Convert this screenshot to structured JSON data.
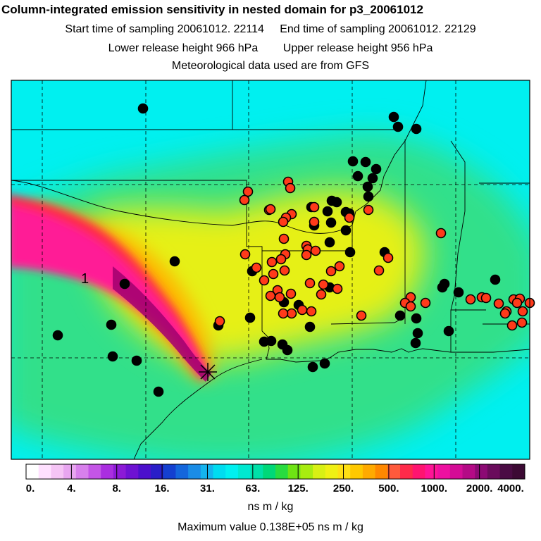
{
  "header": {
    "title": "Column-integrated emission sensitivity in nested domain for p3_20061012",
    "start_label": "Start time of sampling 20061012. 22114",
    "end_label": "End time of sampling 20061012. 22129",
    "lower_label": "Lower release height  966 hPa",
    "upper_label": "Upper release height  956 hPa",
    "met_label": "Meteorological data used are from GFS"
  },
  "map": {
    "plume_label": "1",
    "colors": {
      "background_cyan": "#00f0f0",
      "green": "#33e08a",
      "yellow": "#e6f014",
      "orange": "#ffb400",
      "red": "#ff2a4a",
      "magenta": "#ff1e96",
      "purple": "#a0006e",
      "black_marker": "#000000",
      "red_marker": "#ff3a1a"
    }
  },
  "colorbar": {
    "colors": [
      "#ffffff",
      "#ffe0ff",
      "#f5c4f5",
      "#e8a6f0",
      "#d880ec",
      "#c455e6",
      "#aa2ee0",
      "#8c1ad6",
      "#6e12d2",
      "#4c10cc",
      "#2a1ec8",
      "#1440d0",
      "#1466dc",
      "#1a8ce6",
      "#14b4ee",
      "#00dcf0",
      "#00f0f0",
      "#00e8d0",
      "#00e0a8",
      "#00d878",
      "#28dc40",
      "#6ee414",
      "#a8ec10",
      "#d8f014",
      "#f0f014",
      "#ffe014",
      "#ffc800",
      "#ffaa00",
      "#ff8800",
      "#ff5a3c",
      "#ff2a4a",
      "#ff1470",
      "#ff1496",
      "#ee10a0",
      "#d40c96",
      "#b40a86",
      "#8c0a74",
      "#6a0c5c",
      "#4a0c44",
      "#3c0a34"
    ],
    "ticks": [
      "0.",
      "4.",
      "8.",
      "16.",
      "31.",
      "63.",
      "125.",
      "250.",
      "500.",
      "1000.",
      "2000.",
      "4000."
    ],
    "units": "ns m / kg"
  },
  "footer": {
    "max_value": "Maximum value  0.138E+05 ns m / kg"
  },
  "markers": {
    "black": [
      [
        203,
        154
      ],
      [
        559,
        166
      ],
      [
        565,
        180
      ],
      [
        591,
        183
      ],
      [
        501,
        229
      ],
      [
        519,
        230
      ],
      [
        508,
        250
      ],
      [
        529,
        253
      ],
      [
        534,
        240
      ],
      [
        522,
        265
      ],
      [
        523,
        279
      ],
      [
        471,
        285
      ],
      [
        478,
        287
      ],
      [
        442,
        294
      ],
      [
        465,
        300
      ],
      [
        491,
        301
      ],
      [
        496,
        303
      ],
      [
        470,
        316
      ],
      [
        446,
        320
      ],
      [
        491,
        327
      ],
      [
        468,
        344
      ],
      [
        546,
        358
      ],
      [
        497,
        358
      ],
      [
        248,
        371
      ],
      [
        358,
        385
      ],
      [
        177,
        403
      ],
      [
        631,
        403
      ],
      [
        651,
        415
      ],
      [
        703,
        397
      ],
      [
        628,
        408
      ],
      [
        468,
        408
      ],
      [
        403,
        429
      ],
      [
        424,
        433
      ],
      [
        355,
        451
      ],
      [
        440,
        464
      ],
      [
        568,
        448
      ],
      [
        591,
        452
      ],
      [
        593,
        473
      ],
      [
        637,
        470
      ],
      [
        310,
        462
      ],
      [
        82,
        476
      ],
      [
        158,
        461
      ],
      [
        385,
        484
      ],
      [
        375,
        485
      ],
      [
        408,
        497
      ],
      [
        401,
        489
      ],
      [
        590,
        487
      ],
      [
        160,
        506
      ],
      [
        194,
        512
      ],
      [
        444,
        521
      ],
      [
        461,
        516
      ],
      [
        225,
        556
      ]
    ],
    "red": [
      [
        409,
        258
      ],
      [
        412,
        267
      ],
      [
        352,
        272
      ],
      [
        347,
        284
      ],
      [
        382,
        298
      ],
      [
        384,
        297
      ],
      [
        414,
        304
      ],
      [
        406,
        309
      ],
      [
        496,
        309
      ],
      [
        446,
        315
      ],
      [
        402,
        315
      ],
      [
        446,
        294
      ],
      [
        523,
        298
      ],
      [
        626,
        331
      ],
      [
        403,
        339
      ],
      [
        435,
        349
      ],
      [
        437,
        354
      ],
      [
        448,
        356
      ],
      [
        405,
        361
      ],
      [
        386,
        372
      ],
      [
        399,
        368
      ],
      [
        404,
        384
      ],
      [
        435,
        362
      ],
      [
        348,
        361
      ],
      [
        364,
        380
      ],
      [
        388,
        389
      ],
      [
        440,
        402
      ],
      [
        459,
        404
      ],
      [
        479,
        410
      ],
      [
        375,
        398
      ],
      [
        394,
        412
      ],
      [
        397,
        422
      ],
      [
        413,
        417
      ],
      [
        456,
        418
      ],
      [
        482,
        378
      ],
      [
        414,
        445
      ],
      [
        429,
        440
      ],
      [
        442,
        442
      ],
      [
        384,
        420
      ],
      [
        402,
        445
      ],
      [
        470,
        385
      ],
      [
        551,
        366
      ],
      [
        538,
        384
      ],
      [
        583,
        422
      ],
      [
        575,
        430
      ],
      [
        604,
        430
      ],
      [
        513,
        448
      ],
      [
        583,
        435
      ],
      [
        668,
        425
      ],
      [
        684,
        422
      ],
      [
        690,
        423
      ],
      [
        708,
        431
      ],
      [
        719,
        442
      ],
      [
        729,
        425
      ],
      [
        738,
        424
      ],
      [
        734,
        430
      ],
      [
        742,
        442
      ],
      [
        752,
        430
      ],
      [
        741,
        458
      ],
      [
        717,
        445
      ],
      [
        727,
        462
      ],
      [
        312,
        456
      ]
    ]
  }
}
